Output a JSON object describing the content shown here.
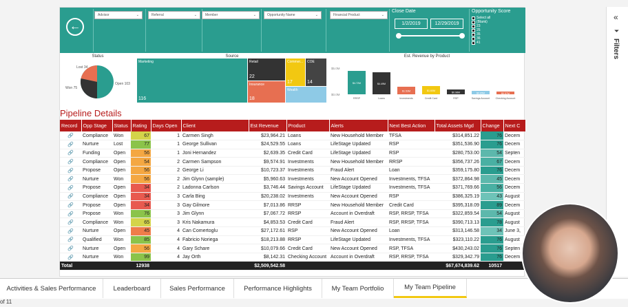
{
  "header": {
    "slicers": [
      "Advisor",
      "Referral",
      "Member",
      "Opportunity Name",
      "Financial Product"
    ],
    "close_date": {
      "label": "Close Date",
      "start": "1/2/2019",
      "end": "12/29/2019"
    },
    "opp_score": {
      "label": "Opportunity Score",
      "items": [
        "Select all",
        "(Blank)",
        "23",
        "25",
        "35",
        "36",
        "41"
      ]
    }
  },
  "status_chart": {
    "title": "Status",
    "labels": [
      "Lost 34",
      "Won 75",
      "Open 103"
    ]
  },
  "source_chart": {
    "title": "Source",
    "tiles": [
      {
        "label": "Marketing",
        "value": "116"
      },
      {
        "label": "Retail",
        "value": "22"
      },
      {
        "label": "Insurance",
        "value": "18"
      },
      {
        "label": "Commer...",
        "value": "17"
      },
      {
        "label": "COE",
        "value": "14"
      },
      {
        "label": "Wealth",
        "value": ""
      }
    ]
  },
  "revenue_chart": {
    "title": "Est. Revenue by Product",
    "ytick_top": "$5.0M",
    "ytick_bottom": "$0.0M",
    "bars": [
      {
        "label": "RRSP",
        "value": "$4.72M",
        "color": "#2a9d8f"
      },
      {
        "label": "Loans",
        "value": "$4.49M",
        "color": "#333"
      },
      {
        "label": "Investments",
        "value": "$1.53M",
        "color": "#e76f51"
      },
      {
        "label": "Credit Card",
        "value": "$1.60M",
        "color": "#f2c811"
      },
      {
        "label": "RSP",
        "value": "$0.98M",
        "color": "#333"
      },
      {
        "label": "Savings Account",
        "value": "$0.65M",
        "color": "#8ecae6"
      },
      {
        "label": "Checking Account",
        "value": "$0.57M",
        "color": "#e76f51"
      }
    ]
  },
  "pipeline": {
    "title": "Pipeline Details",
    "columns": [
      "Record",
      "Opp Stage",
      "Status",
      "Rating",
      "Days Open",
      "Client",
      "Est Revenue",
      "Product",
      "Alerts",
      "Next Best Action",
      "Total Assets Mgd",
      "Change",
      "Next C"
    ],
    "rows": [
      [
        "Compliance",
        "Won",
        "67",
        "1",
        "Carmen Singh",
        "$23,964.21",
        "Loans",
        "New Household Member",
        "TFSA",
        "$314,851.22",
        "76",
        "Decem"
      ],
      [
        "Nurture",
        "Lost",
        "77",
        "1",
        "George Sullivan",
        "$24,529.55",
        "Loans",
        "LifeStage Updated",
        "RSP",
        "$351,536.90",
        "76",
        "Decem"
      ],
      [
        "Funding",
        "Open",
        "56",
        "1",
        "Joni Hernandez",
        "$2,639.35",
        "Credit Card",
        "LifeStage Updated",
        "RSP",
        "$280,753.00",
        "54",
        "Septen"
      ],
      [
        "Compliance",
        "Open",
        "54",
        "2",
        "Carmen Sampson",
        "$9,574.91",
        "Investments",
        "New Household Member",
        "RRSP",
        "$356,737.26",
        "67",
        "Decem"
      ],
      [
        "Propose",
        "Open",
        "56",
        "2",
        "George Li",
        "$10,723.37",
        "Investments",
        "Fraud Alert",
        "Loan",
        "$359,175.80",
        "76",
        "Decem"
      ],
      [
        "Nurture",
        "Won",
        "56",
        "2",
        "Jim Glynn (sample)",
        "$5,960.63",
        "Investments",
        "New Account Opened",
        "Investments, TFSA",
        "$372,864.98",
        "45",
        "Decem"
      ],
      [
        "Propose",
        "Open",
        "34",
        "2",
        "Ladonna Carlson",
        "$3,746.44",
        "Savings Account",
        "LifeStage Updated",
        "Investments, TFSA",
        "$371,769.66",
        "56",
        "Decem"
      ],
      [
        "Compliance",
        "Open",
        "34",
        "3",
        "Carla Bing",
        "$20,238.02",
        "Investments",
        "New Account Opened",
        "RSP",
        "$386,325.19",
        "43",
        "August"
      ],
      [
        "Propose",
        "Open",
        "34",
        "3",
        "Gay Gilmore",
        "$7,013.86",
        "RRSP",
        "New Household Member",
        "Credit Card",
        "$395,318.09",
        "89",
        "Decem"
      ],
      [
        "Propose",
        "Won",
        "76",
        "3",
        "Jim Glynn",
        "$7,067.72",
        "RRSP",
        "Account in Overdraft",
        "RSP, RRSP, TFSA",
        "$322,859.54",
        "54",
        "August"
      ],
      [
        "Compliance",
        "Won",
        "65",
        "3",
        "Kris Nakamura",
        "$4,853.53",
        "Credit Card",
        "Fraud Alert",
        "RSP, RRSP, TFSA",
        "$390,713.13",
        "78",
        "August"
      ],
      [
        "Nurture",
        "Open",
        "45",
        "4",
        "Can Comertoglu",
        "$27,172.61",
        "RSP",
        "New Account Opened",
        "Loan",
        "$313,146.58",
        "34",
        "June 3,"
      ],
      [
        "Qualified",
        "Won",
        "85",
        "4",
        "Fabricio Noriega",
        "$18,213.88",
        "RRSP",
        "LifeStage Updated",
        "Investments, TFSA",
        "$323,110.22",
        "76",
        "August"
      ],
      [
        "Nurture",
        "Open",
        "56",
        "4",
        "Gary Schare",
        "$10,079.66",
        "Credit Card",
        "New Account Opened",
        "RSP, TFSA",
        "$430,243.02",
        "76",
        "Septen"
      ],
      [
        "Nurture",
        "Won",
        "99",
        "4",
        "Jay Orth",
        "$8,142.31",
        "Checking Account",
        "Account in Overdraft",
        "RSP, RRSP, TFSA",
        "$329,342.79",
        "76",
        "Decem"
      ]
    ],
    "total": {
      "label": "Total",
      "rating": "12938",
      "revenue": "$2,509,542.58",
      "assets": "$67,674,839.62",
      "change": "10517"
    }
  },
  "tabs": [
    "Activities & Sales Performance",
    "Leaderboard",
    "Sales Performance",
    "Performance Highlights",
    "My Team Portfolio",
    "My Team Pipeline"
  ],
  "page_indicator": "of 11",
  "filters_label": "Filters"
}
